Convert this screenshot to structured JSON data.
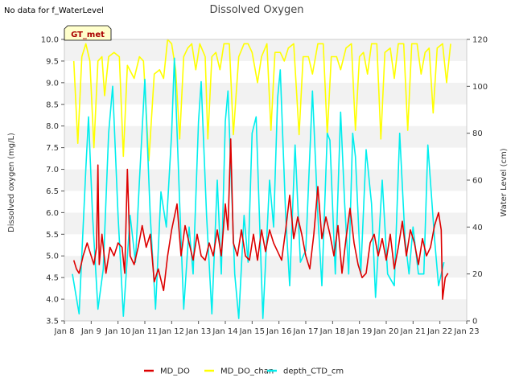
{
  "header": {
    "no_data_note": "No data for f_WaterLevel"
  },
  "station_badge": {
    "label": "GT_met",
    "text_color": "#aa0000",
    "fill": "#ffffcc"
  },
  "chart_data": {
    "type": "line",
    "title": "Dissolved Oxygen",
    "ylabel": "Dissolved oxygen (mg/L)",
    "y2label": "Water Level (cm)",
    "ylim": [
      3.5,
      10.0
    ],
    "y2lim": [
      0,
      120
    ],
    "xlim": [
      8,
      23
    ],
    "yticks": [
      "3.5",
      "4.0",
      "4.5",
      "5.0",
      "5.5",
      "6.0",
      "6.5",
      "7.0",
      "7.5",
      "8.0",
      "8.5",
      "9.0",
      "9.5",
      "10.0"
    ],
    "y2ticks": [
      "0",
      "20",
      "40",
      "60",
      "80",
      "100",
      "120"
    ],
    "xticks": [
      "Jan 8",
      "Jan 9",
      "Jan 10",
      "Jan 11",
      "Jan 12",
      "Jan 13",
      "Jan 14",
      "Jan 15",
      "Jan 16",
      "Jan 17",
      "Jan 18",
      "Jan 19",
      "Jan 20",
      "Jan 21",
      "Jan 22",
      "Jan 23"
    ],
    "grid": "horizontal-bands",
    "legend_position": "bottom",
    "series": [
      {
        "name": "MD_DO",
        "axis": "left",
        "color": "#dd0000",
        "points": [
          [
            8.35,
            4.9
          ],
          [
            8.45,
            4.7
          ],
          [
            8.55,
            4.6
          ],
          [
            8.7,
            5.0
          ],
          [
            8.85,
            5.3
          ],
          [
            9.0,
            5.0
          ],
          [
            9.1,
            4.8
          ],
          [
            9.2,
            5.2
          ],
          [
            9.25,
            7.1
          ],
          [
            9.3,
            4.8
          ],
          [
            9.4,
            5.5
          ],
          [
            9.55,
            4.6
          ],
          [
            9.7,
            5.2
          ],
          [
            9.85,
            5.0
          ],
          [
            10.0,
            5.3
          ],
          [
            10.15,
            5.2
          ],
          [
            10.25,
            4.6
          ],
          [
            10.35,
            7.0
          ],
          [
            10.45,
            5.0
          ],
          [
            10.6,
            4.8
          ],
          [
            10.75,
            5.2
          ],
          [
            10.9,
            5.7
          ],
          [
            11.05,
            5.2
          ],
          [
            11.2,
            5.5
          ],
          [
            11.35,
            4.4
          ],
          [
            11.5,
            4.7
          ],
          [
            11.7,
            4.2
          ],
          [
            11.85,
            5.0
          ],
          [
            12.0,
            5.6
          ],
          [
            12.2,
            6.2
          ],
          [
            12.35,
            5.0
          ],
          [
            12.5,
            5.7
          ],
          [
            12.65,
            5.3
          ],
          [
            12.8,
            4.9
          ],
          [
            12.95,
            5.5
          ],
          [
            13.1,
            5.0
          ],
          [
            13.25,
            4.9
          ],
          [
            13.4,
            5.3
          ],
          [
            13.55,
            5.0
          ],
          [
            13.7,
            5.6
          ],
          [
            13.85,
            5.0
          ],
          [
            14.0,
            6.2
          ],
          [
            14.1,
            5.6
          ],
          [
            14.2,
            7.7
          ],
          [
            14.3,
            5.3
          ],
          [
            14.45,
            5.0
          ],
          [
            14.6,
            5.6
          ],
          [
            14.75,
            5.0
          ],
          [
            14.9,
            4.9
          ],
          [
            15.05,
            5.5
          ],
          [
            15.2,
            4.9
          ],
          [
            15.35,
            5.6
          ],
          [
            15.5,
            5.1
          ],
          [
            15.65,
            5.6
          ],
          [
            15.8,
            5.3
          ],
          [
            15.95,
            5.1
          ],
          [
            16.1,
            4.9
          ],
          [
            16.25,
            5.6
          ],
          [
            16.4,
            6.4
          ],
          [
            16.55,
            5.4
          ],
          [
            16.7,
            5.9
          ],
          [
            16.85,
            5.5
          ],
          [
            17.0,
            5.0
          ],
          [
            17.15,
            4.7
          ],
          [
            17.3,
            5.5
          ],
          [
            17.45,
            6.6
          ],
          [
            17.6,
            5.4
          ],
          [
            17.75,
            5.9
          ],
          [
            17.9,
            5.5
          ],
          [
            18.05,
            5.0
          ],
          [
            18.2,
            5.7
          ],
          [
            18.35,
            4.6
          ],
          [
            18.5,
            5.4
          ],
          [
            18.65,
            6.1
          ],
          [
            18.8,
            5.3
          ],
          [
            18.95,
            4.8
          ],
          [
            19.1,
            4.5
          ],
          [
            19.25,
            4.6
          ],
          [
            19.4,
            5.3
          ],
          [
            19.55,
            5.5
          ],
          [
            19.7,
            5.0
          ],
          [
            19.85,
            5.4
          ],
          [
            20.0,
            4.9
          ],
          [
            20.15,
            5.5
          ],
          [
            20.3,
            4.7
          ],
          [
            20.45,
            5.2
          ],
          [
            20.6,
            5.8
          ],
          [
            20.75,
            5.0
          ],
          [
            20.9,
            5.6
          ],
          [
            21.05,
            5.3
          ],
          [
            21.2,
            4.8
          ],
          [
            21.35,
            5.4
          ],
          [
            21.5,
            5.0
          ],
          [
            21.65,
            5.2
          ],
          [
            21.8,
            5.7
          ],
          [
            21.95,
            6.0
          ],
          [
            22.05,
            5.6
          ],
          [
            22.1,
            4.0
          ],
          [
            22.2,
            4.5
          ],
          [
            22.3,
            4.6
          ]
        ]
      },
      {
        "name": "MD_DO_chan",
        "axis": "left",
        "color": "#ffff00",
        "points": [
          [
            8.35,
            9.5
          ],
          [
            8.5,
            7.6
          ],
          [
            8.65,
            9.6
          ],
          [
            8.8,
            9.9
          ],
          [
            8.95,
            9.5
          ],
          [
            9.1,
            7.5
          ],
          [
            9.25,
            9.5
          ],
          [
            9.4,
            9.6
          ],
          [
            9.5,
            8.7
          ],
          [
            9.65,
            9.6
          ],
          [
            9.85,
            9.7
          ],
          [
            10.05,
            9.6
          ],
          [
            10.2,
            7.3
          ],
          [
            10.35,
            9.4
          ],
          [
            10.6,
            9.1
          ],
          [
            10.8,
            9.6
          ],
          [
            10.95,
            9.5
          ],
          [
            11.15,
            7.2
          ],
          [
            11.35,
            9.2
          ],
          [
            11.55,
            9.3
          ],
          [
            11.7,
            9.1
          ],
          [
            11.85,
            10.0
          ],
          [
            12.0,
            9.9
          ],
          [
            12.15,
            9.3
          ],
          [
            12.3,
            7.7
          ],
          [
            12.45,
            9.6
          ],
          [
            12.6,
            9.8
          ],
          [
            12.75,
            9.9
          ],
          [
            12.9,
            9.3
          ],
          [
            13.05,
            9.9
          ],
          [
            13.25,
            9.6
          ],
          [
            13.35,
            7.7
          ],
          [
            13.5,
            9.6
          ],
          [
            13.65,
            9.7
          ],
          [
            13.8,
            9.3
          ],
          [
            13.95,
            9.9
          ],
          [
            14.15,
            9.9
          ],
          [
            14.3,
            7.8
          ],
          [
            14.5,
            9.6
          ],
          [
            14.7,
            9.9
          ],
          [
            14.85,
            9.9
          ],
          [
            15.0,
            9.7
          ],
          [
            15.2,
            9.0
          ],
          [
            15.35,
            9.6
          ],
          [
            15.55,
            9.9
          ],
          [
            15.7,
            7.9
          ],
          [
            15.85,
            9.7
          ],
          [
            16.05,
            9.7
          ],
          [
            16.2,
            9.5
          ],
          [
            16.35,
            9.8
          ],
          [
            16.55,
            9.9
          ],
          [
            16.75,
            7.8
          ],
          [
            16.9,
            9.6
          ],
          [
            17.1,
            9.6
          ],
          [
            17.25,
            9.2
          ],
          [
            17.45,
            9.9
          ],
          [
            17.65,
            9.9
          ],
          [
            17.8,
            7.8
          ],
          [
            17.95,
            9.6
          ],
          [
            18.15,
            9.6
          ],
          [
            18.3,
            9.3
          ],
          [
            18.5,
            9.8
          ],
          [
            18.7,
            9.9
          ],
          [
            18.85,
            7.9
          ],
          [
            19.0,
            9.6
          ],
          [
            19.15,
            9.7
          ],
          [
            19.3,
            9.2
          ],
          [
            19.45,
            9.9
          ],
          [
            19.65,
            9.9
          ],
          [
            19.8,
            7.7
          ],
          [
            19.95,
            9.7
          ],
          [
            20.15,
            9.8
          ],
          [
            20.3,
            9.1
          ],
          [
            20.45,
            9.9
          ],
          [
            20.65,
            9.9
          ],
          [
            20.8,
            7.9
          ],
          [
            20.95,
            9.9
          ],
          [
            21.15,
            9.9
          ],
          [
            21.3,
            9.2
          ],
          [
            21.45,
            9.7
          ],
          [
            21.6,
            9.8
          ],
          [
            21.75,
            8.3
          ],
          [
            21.9,
            9.8
          ],
          [
            22.1,
            9.9
          ],
          [
            22.25,
            9.0
          ],
          [
            22.4,
            9.9
          ]
        ]
      },
      {
        "name": "depth_CTD_cm",
        "axis": "right",
        "color": "#00eeee",
        "points": [
          [
            8.3,
            20
          ],
          [
            8.55,
            3
          ],
          [
            8.8,
            65
          ],
          [
            8.9,
            87
          ],
          [
            9.05,
            45
          ],
          [
            9.25,
            5
          ],
          [
            9.45,
            22
          ],
          [
            9.65,
            80
          ],
          [
            9.8,
            100
          ],
          [
            10.0,
            45
          ],
          [
            10.2,
            2
          ],
          [
            10.45,
            45
          ],
          [
            10.65,
            25
          ],
          [
            10.8,
            60
          ],
          [
            11.0,
            103
          ],
          [
            11.2,
            45
          ],
          [
            11.4,
            5
          ],
          [
            11.6,
            55
          ],
          [
            11.8,
            40
          ],
          [
            12.0,
            80
          ],
          [
            12.1,
            112
          ],
          [
            12.3,
            50
          ],
          [
            12.45,
            5
          ],
          [
            12.65,
            40
          ],
          [
            12.8,
            20
          ],
          [
            13.0,
            85
          ],
          [
            13.1,
            102
          ],
          [
            13.3,
            45
          ],
          [
            13.5,
            3
          ],
          [
            13.7,
            60
          ],
          [
            13.85,
            20
          ],
          [
            14.0,
            85
          ],
          [
            14.1,
            98
          ],
          [
            14.35,
            20
          ],
          [
            14.5,
            1
          ],
          [
            14.7,
            45
          ],
          [
            14.85,
            25
          ],
          [
            15.0,
            80
          ],
          [
            15.15,
            87
          ],
          [
            15.3,
            35
          ],
          [
            15.4,
            1
          ],
          [
            15.65,
            60
          ],
          [
            15.8,
            40
          ],
          [
            15.95,
            95
          ],
          [
            16.05,
            107
          ],
          [
            16.25,
            45
          ],
          [
            16.4,
            15
          ],
          [
            16.6,
            75
          ],
          [
            16.8,
            25
          ],
          [
            17.0,
            30
          ],
          [
            17.25,
            98
          ],
          [
            17.45,
            45
          ],
          [
            17.6,
            15
          ],
          [
            17.8,
            80
          ],
          [
            17.9,
            77
          ],
          [
            18.1,
            20
          ],
          [
            18.3,
            89
          ],
          [
            18.45,
            50
          ],
          [
            18.6,
            20
          ],
          [
            18.75,
            80
          ],
          [
            18.85,
            70
          ],
          [
            19.05,
            20
          ],
          [
            19.25,
            73
          ],
          [
            19.45,
            50
          ],
          [
            19.6,
            10
          ],
          [
            19.85,
            60
          ],
          [
            20.05,
            20
          ],
          [
            20.3,
            15
          ],
          [
            20.5,
            80
          ],
          [
            20.7,
            35
          ],
          [
            20.85,
            20
          ],
          [
            21.0,
            40
          ],
          [
            21.2,
            20
          ],
          [
            21.4,
            20
          ],
          [
            21.55,
            75
          ],
          [
            21.8,
            35
          ],
          [
            21.95,
            15
          ],
          [
            22.15,
            25
          ]
        ]
      }
    ]
  }
}
